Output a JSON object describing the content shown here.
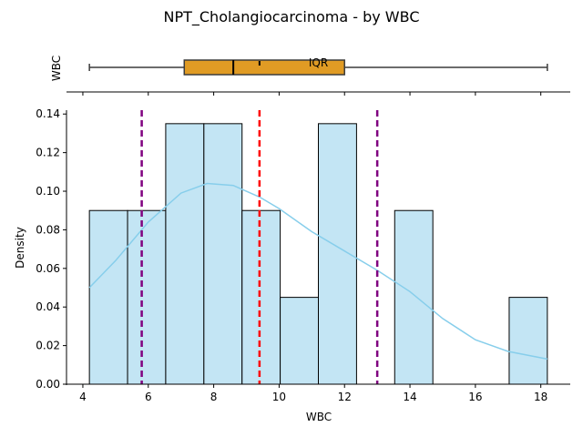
{
  "chart_data": [
    {
      "type": "box",
      "title": "NPT_Cholangiocarcinoma - by WBC",
      "ylabel": "WBC",
      "xlim": [
        3.5,
        18.9
      ],
      "stats": {
        "min": 4.2,
        "q1": 7.1,
        "median": 8.6,
        "mean": 9.4,
        "q3": 12.0,
        "max": 18.2
      },
      "annotation": "IQR",
      "color": "#e09b24"
    },
    {
      "type": "histogram",
      "xlabel": "WBC",
      "ylabel": "Density",
      "xlim": [
        3.5,
        18.9
      ],
      "ylim": [
        0,
        0.142
      ],
      "xticks": [
        4,
        6,
        8,
        10,
        12,
        14,
        16,
        18
      ],
      "yticks": [
        0.0,
        0.02,
        0.04,
        0.06,
        0.08,
        0.1,
        0.12,
        0.14
      ],
      "bins": [
        {
          "x0": 4.2,
          "x1": 5.367,
          "density": 0.09
        },
        {
          "x0": 5.367,
          "x1": 6.533,
          "density": 0.09
        },
        {
          "x0": 6.533,
          "x1": 7.7,
          "density": 0.135
        },
        {
          "x0": 7.7,
          "x1": 8.867,
          "density": 0.135
        },
        {
          "x0": 8.867,
          "x1": 10.033,
          "density": 0.09
        },
        {
          "x0": 10.033,
          "x1": 11.2,
          "density": 0.045
        },
        {
          "x0": 11.2,
          "x1": 12.367,
          "density": 0.135
        },
        {
          "x0": 12.367,
          "x1": 13.533,
          "density": 0.0
        },
        {
          "x0": 13.533,
          "x1": 14.7,
          "density": 0.09
        },
        {
          "x0": 14.7,
          "x1": 15.867,
          "density": 0.0
        },
        {
          "x0": 15.867,
          "x1": 17.033,
          "density": 0.0
        },
        {
          "x0": 17.033,
          "x1": 18.2,
          "density": 0.045
        }
      ],
      "kde": [
        {
          "x": 4.2,
          "y": 0.05
        },
        {
          "x": 5.0,
          "y": 0.064
        },
        {
          "x": 6.0,
          "y": 0.084
        },
        {
          "x": 7.0,
          "y": 0.099
        },
        {
          "x": 7.8,
          "y": 0.104
        },
        {
          "x": 8.6,
          "y": 0.103
        },
        {
          "x": 9.4,
          "y": 0.097
        },
        {
          "x": 10.0,
          "y": 0.091
        },
        {
          "x": 11.0,
          "y": 0.079
        },
        {
          "x": 12.0,
          "y": 0.069
        },
        {
          "x": 13.0,
          "y": 0.059
        },
        {
          "x": 14.0,
          "y": 0.048
        },
        {
          "x": 15.0,
          "y": 0.034
        },
        {
          "x": 16.0,
          "y": 0.023
        },
        {
          "x": 17.0,
          "y": 0.017
        },
        {
          "x": 18.2,
          "y": 0.013
        }
      ],
      "vlines": [
        {
          "x": 5.8,
          "color": "#800080"
        },
        {
          "x": 9.4,
          "color": "#ff0000"
        },
        {
          "x": 13.0,
          "color": "#800080"
        }
      ],
      "bar_color": "#c3e5f4",
      "kde_color": "#87ceeb"
    }
  ]
}
